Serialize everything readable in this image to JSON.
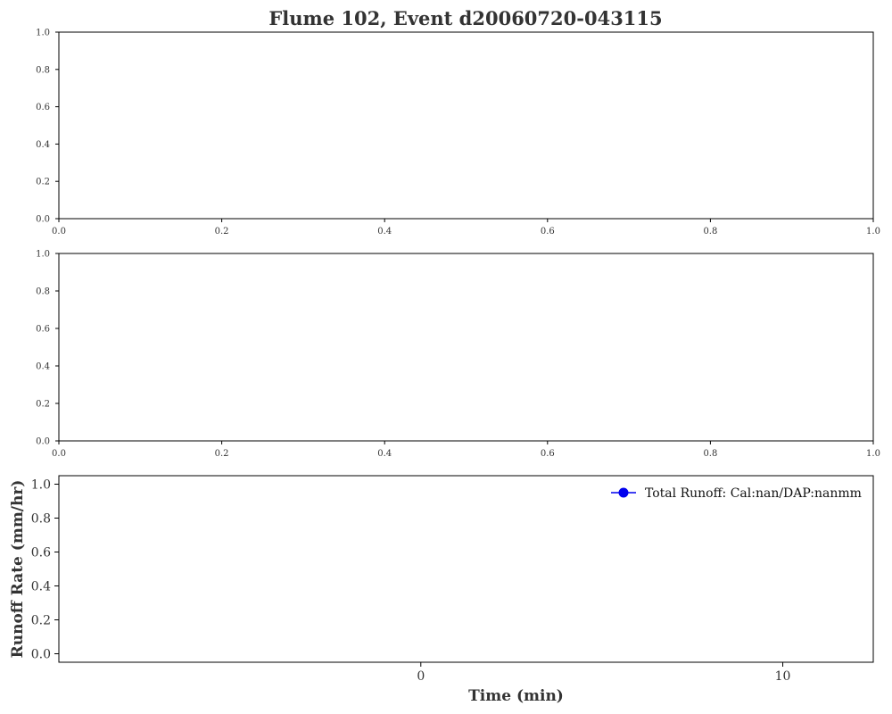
{
  "title": "Flume 102, Event d20060720-043115",
  "colors": {
    "series": "#0000ee",
    "axis": "#000000",
    "text": "#333333"
  },
  "chart_data": [
    {
      "type": "line",
      "xlabel": "",
      "ylabel": "",
      "xlim": [
        0,
        1
      ],
      "ylim": [
        0,
        1
      ],
      "xticks": [
        "0.0",
        "0.2",
        "0.4",
        "0.6",
        "0.8",
        "1.0"
      ],
      "yticks": [
        "0.0",
        "0.2",
        "0.4",
        "0.6",
        "0.8",
        "1.0"
      ],
      "series": []
    },
    {
      "type": "line",
      "xlabel": "",
      "ylabel": "",
      "xlim": [
        0,
        1
      ],
      "ylim": [
        0,
        1
      ],
      "xticks": [
        "0.0",
        "0.2",
        "0.4",
        "0.6",
        "0.8",
        "1.0"
      ],
      "yticks": [
        "0.0",
        "0.2",
        "0.4",
        "0.6",
        "0.8",
        "1.0"
      ],
      "series": []
    },
    {
      "type": "line",
      "xlabel": "Time (min)",
      "ylabel": "Runoff Rate (mm/hr)",
      "xlim": [
        -10,
        12.5
      ],
      "ylim": [
        -0.05,
        1.05
      ],
      "xticks": [
        0,
        10
      ],
      "yticks": [
        "0.0",
        "0.2",
        "0.4",
        "0.6",
        "0.8",
        "1.0"
      ],
      "legend_position": "top-right",
      "series": [
        {
          "name": "Total Runoff: Cal:nan/DAP:nanmm",
          "marker": "circle",
          "color": "#0000ee",
          "x": [],
          "y": []
        }
      ]
    }
  ]
}
